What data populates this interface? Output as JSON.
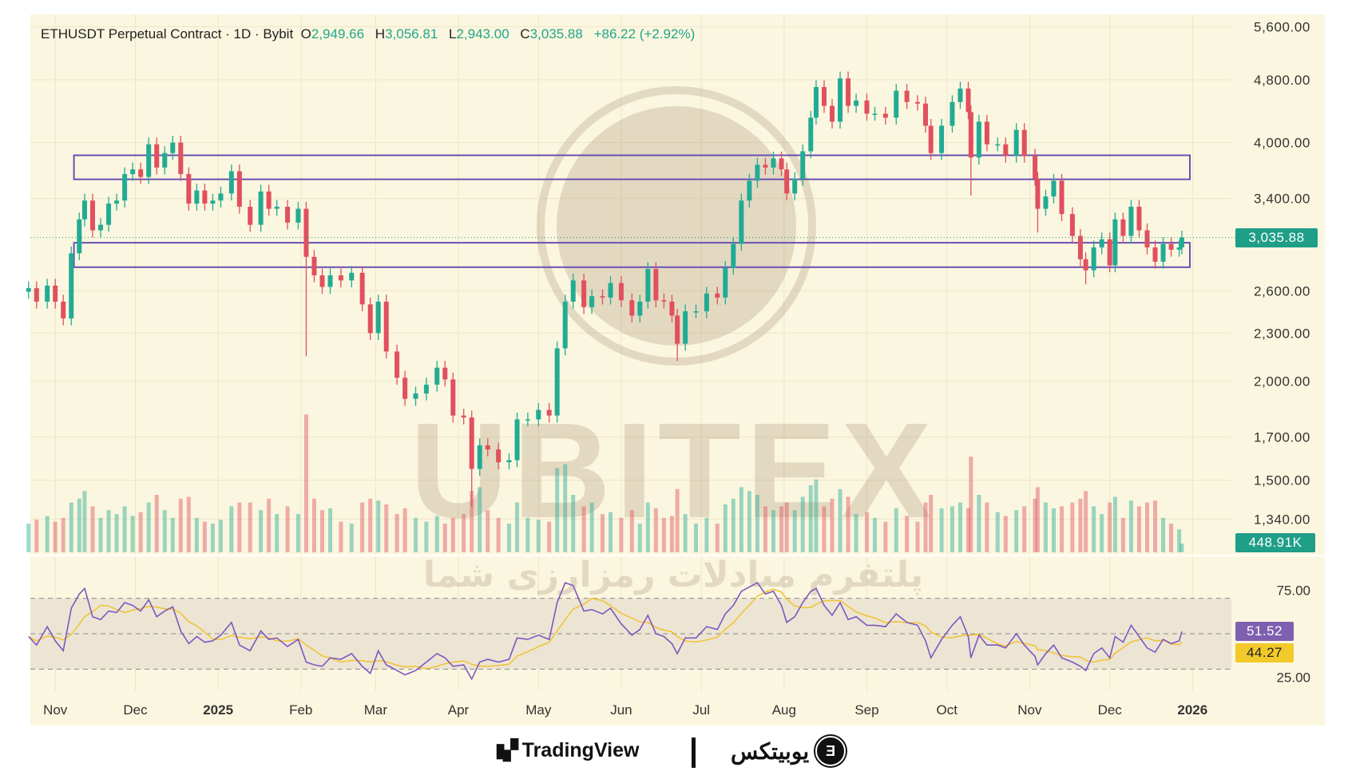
{
  "header": {
    "symbol": "ETHUSDT Perpetual Contract · 1D · Bybit",
    "open_label": "O",
    "open": "2,949.66",
    "high_label": "H",
    "high": "3,056.81",
    "low_label": "L",
    "low": "2,943.00",
    "close_label": "C",
    "close": "3,035.88",
    "change": "+86.22 (+2.92%)"
  },
  "price_tags": {
    "last_price": "3,035.88",
    "volume": "448.91K",
    "rsi": "51.52",
    "rsi_ma": "44.27"
  },
  "watermark": {
    "brand": "UBITEX",
    "tagline": "پلتفرم مبادلات رمزارزی شما"
  },
  "footer": {
    "tradingview": "TradingView",
    "ubitex": "یوبیتکس"
  },
  "colors": {
    "up": "#22ab94",
    "down": "#e0505f",
    "zone": "#6a4fb3",
    "rsi": "#7e57c2",
    "rsi_ma": "#f2c230",
    "last_tag": "#1f9e88",
    "background": "#fbf6df"
  },
  "chart_data": {
    "type": "candlestick",
    "title": "ETHUSDT Perpetual Contract · 1D · Bybit",
    "y_scale": "log",
    "ylim": [
      1300,
      5700
    ],
    "y_ticks": [
      5600,
      4800,
      4000,
      3400,
      2600,
      2300,
      2000,
      1700,
      1500,
      1340
    ],
    "y_tick_labels": [
      "5,600.00",
      "4,800.00",
      "4,000.00",
      "3,400.00",
      "2,600.00",
      "2,300.00",
      "2,000.00",
      "1,700.00",
      "1,500.00",
      "1,340.00"
    ],
    "x_ticks": [
      {
        "date": "2024-11-01",
        "label": "Nov"
      },
      {
        "date": "2024-12-01",
        "label": "Dec"
      },
      {
        "date": "2025-01-01",
        "label": "2025",
        "bold": true
      },
      {
        "date": "2025-02-01",
        "label": "Feb"
      },
      {
        "date": "2025-03-01",
        "label": "Mar"
      },
      {
        "date": "2025-04-01",
        "label": "Apr"
      },
      {
        "date": "2025-05-01",
        "label": "May"
      },
      {
        "date": "2025-06-01",
        "label": "Jun"
      },
      {
        "date": "2025-07-01",
        "label": "Jul"
      },
      {
        "date": "2025-08-01",
        "label": "Aug"
      },
      {
        "date": "2025-09-01",
        "label": "Sep"
      },
      {
        "date": "2025-10-01",
        "label": "Oct"
      },
      {
        "date": "2025-11-01",
        "label": "Nov"
      },
      {
        "date": "2025-12-01",
        "label": "Dec"
      },
      {
        "date": "2026-01-01",
        "label": "2026",
        "bold": true
      }
    ],
    "last_price": 3035.88,
    "zones": [
      {
        "from_date": "2024-11-08",
        "to_date": "2025-12-31",
        "top": 3855,
        "bottom": 3595
      },
      {
        "from_date": "2024-11-08",
        "to_date": "2025-12-31",
        "top": 2990,
        "bottom": 2785
      }
    ],
    "series_fields": [
      "date",
      "close",
      "volume_k",
      "rsi",
      "low"
    ],
    "series": [
      [
        "2024-10-22",
        2620,
        1500,
        48
      ],
      [
        "2024-10-25",
        2520,
        1700,
        42
      ],
      [
        "2024-10-29",
        2640,
        1900,
        55
      ],
      [
        "2024-11-01",
        2520,
        1600,
        45
      ],
      [
        "2024-11-04",
        2400,
        1800,
        38
      ],
      [
        "2024-11-07",
        2900,
        2600,
        68
      ],
      [
        "2024-11-10",
        3200,
        2800,
        78
      ],
      [
        "2024-11-12",
        3380,
        3200,
        82
      ],
      [
        "2024-11-15",
        3100,
        2400,
        62
      ],
      [
        "2024-11-18",
        3150,
        1800,
        60
      ],
      [
        "2024-11-21",
        3350,
        2200,
        66
      ],
      [
        "2024-11-24",
        3380,
        2000,
        65
      ],
      [
        "2024-11-27",
        3650,
        2400,
        72
      ],
      [
        "2024-11-30",
        3700,
        1900,
        70
      ],
      [
        "2024-12-03",
        3620,
        2100,
        66
      ],
      [
        "2024-12-06",
        3980,
        2600,
        74
      ],
      [
        "2024-12-09",
        3720,
        3000,
        62
      ],
      [
        "2024-12-12",
        3880,
        2200,
        66
      ],
      [
        "2024-12-15",
        4000,
        1800,
        69
      ],
      [
        "2024-12-18",
        3650,
        2800,
        52
      ],
      [
        "2024-12-21",
        3350,
        2900,
        43
      ],
      [
        "2024-12-24",
        3480,
        1800,
        48
      ],
      [
        "2024-12-27",
        3350,
        1600,
        44
      ],
      [
        "2024-12-30",
        3380,
        1500,
        45
      ],
      [
        "2025-01-02",
        3450,
        1700,
        49
      ],
      [
        "2025-01-06",
        3680,
        2400,
        58
      ],
      [
        "2025-01-09",
        3320,
        2600,
        42
      ],
      [
        "2025-01-13",
        3150,
        2600,
        38
      ],
      [
        "2025-01-17",
        3470,
        2200,
        52
      ],
      [
        "2025-01-20",
        3300,
        2800,
        46
      ],
      [
        "2025-01-23",
        3320,
        2000,
        47
      ],
      [
        "2025-01-27",
        3170,
        2400,
        41
      ],
      [
        "2025-01-31",
        3300,
        2000,
        46
      ],
      [
        "2025-02-03",
        2870,
        7200,
        30,
        2150
      ],
      [
        "2025-02-06",
        2720,
        2800,
        28
      ],
      [
        "2025-02-09",
        2630,
        2200,
        27
      ],
      [
        "2025-02-12",
        2720,
        2300,
        33
      ],
      [
        "2025-02-16",
        2680,
        1600,
        32
      ],
      [
        "2025-02-20",
        2740,
        1500,
        36
      ],
      [
        "2025-02-24",
        2500,
        2600,
        27
      ],
      [
        "2025-02-27",
        2300,
        2800,
        22
      ],
      [
        "2025-03-02",
        2520,
        2700,
        38
      ],
      [
        "2025-03-05",
        2180,
        2500,
        28
      ],
      [
        "2025-03-09",
        2020,
        2000,
        24
      ],
      [
        "2025-03-12",
        1900,
        2300,
        21
      ],
      [
        "2025-03-16",
        1930,
        1800,
        24
      ],
      [
        "2025-03-20",
        1980,
        1600,
        30
      ],
      [
        "2025-03-24",
        2080,
        1900,
        36
      ],
      [
        "2025-03-27",
        2010,
        1500,
        33
      ],
      [
        "2025-03-30",
        1810,
        1800,
        27
      ],
      [
        "2025-04-03",
        1800,
        2000,
        28
      ],
      [
        "2025-04-06",
        1550,
        3200,
        18,
        1390
      ],
      [
        "2025-04-09",
        1660,
        3400,
        30
      ],
      [
        "2025-04-12",
        1640,
        2200,
        32
      ],
      [
        "2025-04-16",
        1580,
        1800,
        30
      ],
      [
        "2025-04-20",
        1590,
        1500,
        32
      ],
      [
        "2025-04-23",
        1790,
        2600,
        47
      ],
      [
        "2025-04-27",
        1790,
        1800,
        46
      ],
      [
        "2025-05-01",
        1840,
        1700,
        49
      ],
      [
        "2025-05-05",
        1810,
        1600,
        46
      ],
      [
        "2025-05-08",
        2200,
        4400,
        72
      ],
      [
        "2025-05-11",
        2520,
        4600,
        86
      ],
      [
        "2025-05-14",
        2680,
        3000,
        84
      ],
      [
        "2025-05-18",
        2480,
        2400,
        66
      ],
      [
        "2025-05-21",
        2560,
        2600,
        67
      ],
      [
        "2025-05-25",
        2550,
        2000,
        64
      ],
      [
        "2025-05-28",
        2660,
        2100,
        68
      ],
      [
        "2025-06-01",
        2530,
        1800,
        57
      ],
      [
        "2025-06-05",
        2420,
        2200,
        49
      ],
      [
        "2025-06-08",
        2520,
        1500,
        53
      ],
      [
        "2025-06-11",
        2770,
        2600,
        63
      ],
      [
        "2025-06-14",
        2530,
        2300,
        50
      ],
      [
        "2025-06-17",
        2520,
        1800,
        48
      ],
      [
        "2025-06-20",
        2420,
        1900,
        43
      ],
      [
        "2025-06-22",
        2230,
        3300,
        36,
        2120
      ],
      [
        "2025-06-25",
        2450,
        2000,
        47
      ],
      [
        "2025-06-29",
        2450,
        1500,
        47
      ],
      [
        "2025-07-03",
        2580,
        1800,
        55
      ],
      [
        "2025-07-07",
        2550,
        1500,
        53
      ],
      [
        "2025-07-10",
        2780,
        2500,
        64
      ],
      [
        "2025-07-13",
        2980,
        2800,
        70
      ],
      [
        "2025-07-16",
        3380,
        3400,
        80
      ],
      [
        "2025-07-19",
        3580,
        3200,
        83
      ],
      [
        "2025-07-22",
        3750,
        3000,
        86
      ],
      [
        "2025-07-25",
        3720,
        2400,
        78
      ],
      [
        "2025-07-28",
        3820,
        2200,
        80
      ],
      [
        "2025-07-31",
        3700,
        2400,
        70
      ],
      [
        "2025-08-02",
        3450,
        2600,
        58
      ],
      [
        "2025-08-05",
        3600,
        2200,
        62
      ],
      [
        "2025-08-08",
        3900,
        2900,
        72
      ],
      [
        "2025-08-11",
        4300,
        3500,
        80
      ],
      [
        "2025-08-13",
        4700,
        3800,
        82
      ],
      [
        "2025-08-16",
        4450,
        2400,
        70
      ],
      [
        "2025-08-19",
        4250,
        2800,
        63
      ],
      [
        "2025-08-22",
        4820,
        3300,
        72
      ],
      [
        "2025-08-25",
        4450,
        2900,
        60
      ],
      [
        "2025-08-28",
        4520,
        2000,
        62
      ],
      [
        "2025-09-01",
        4350,
        2100,
        56
      ],
      [
        "2025-09-04",
        4350,
        1800,
        56
      ],
      [
        "2025-09-08",
        4300,
        1600,
        55
      ],
      [
        "2025-09-12",
        4650,
        2300,
        64
      ],
      [
        "2025-09-16",
        4500,
        1900,
        58
      ],
      [
        "2025-09-20",
        4480,
        1600,
        56
      ],
      [
        "2025-09-23",
        4200,
        2600,
        45
      ],
      [
        "2025-09-25",
        3880,
        3000,
        33
      ],
      [
        "2025-09-29",
        4200,
        2300,
        46
      ],
      [
        "2025-10-03",
        4500,
        2400,
        56
      ],
      [
        "2025-10-06",
        4680,
        2600,
        62
      ],
      [
        "2025-10-09",
        4370,
        2300,
        48
      ],
      [
        "2025-10-10",
        3830,
        5000,
        33,
        3430
      ],
      [
        "2025-10-13",
        4250,
        3000,
        49
      ],
      [
        "2025-10-16",
        3980,
        2600,
        42
      ],
      [
        "2025-10-20",
        3980,
        2100,
        42
      ],
      [
        "2025-10-23",
        3850,
        1900,
        40
      ],
      [
        "2025-10-27",
        4150,
        2200,
        50
      ],
      [
        "2025-10-30",
        3850,
        2400,
        42
      ],
      [
        "2025-11-03",
        3600,
        2800,
        34
      ],
      [
        "2025-11-04",
        3300,
        3400,
        28,
        3080
      ],
      [
        "2025-11-07",
        3420,
        2600,
        36
      ],
      [
        "2025-11-10",
        3580,
        2300,
        42
      ],
      [
        "2025-11-13",
        3250,
        2400,
        33
      ],
      [
        "2025-11-17",
        3050,
        2600,
        30
      ],
      [
        "2025-11-20",
        2850,
        2800,
        27
      ],
      [
        "2025-11-22",
        2760,
        3200,
        24,
        2650
      ],
      [
        "2025-11-25",
        2950,
        2400,
        36
      ],
      [
        "2025-11-28",
        3020,
        2000,
        40
      ],
      [
        "2025-12-01",
        2800,
        2600,
        33
      ],
      [
        "2025-12-03",
        3200,
        2900,
        48
      ],
      [
        "2025-12-06",
        3050,
        1800,
        44
      ],
      [
        "2025-12-09",
        3320,
        2700,
        56
      ],
      [
        "2025-12-12",
        3100,
        2400,
        48
      ],
      [
        "2025-12-15",
        2950,
        2600,
        40
      ],
      [
        "2025-12-18",
        2830,
        2700,
        37
      ],
      [
        "2025-12-21",
        2980,
        1800,
        46
      ],
      [
        "2025-12-24",
        2930,
        1500,
        43
      ],
      [
        "2025-12-27",
        2950,
        1200,
        45
      ],
      [
        "2025-12-28",
        3035.88,
        448.91,
        51.52
      ]
    ],
    "rsi": {
      "levels": [
        75,
        50,
        25
      ],
      "tick_labels": [
        "75.00",
        "25.00"
      ],
      "current": 51.52,
      "ma_current": 44.27
    }
  }
}
